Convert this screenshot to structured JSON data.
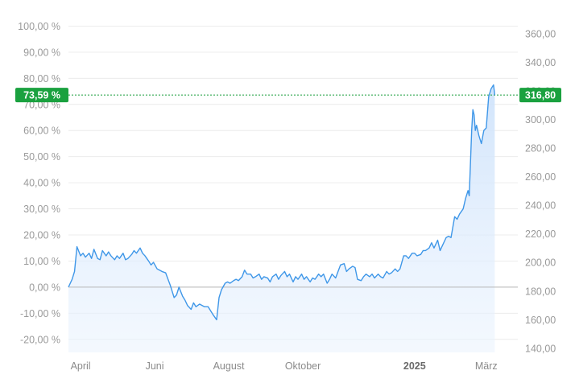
{
  "chart_data": {
    "type": "area",
    "title": "",
    "xlabel": "",
    "ylabel": "",
    "left_axis": {
      "unit": "percent change",
      "range": [
        -25,
        110
      ],
      "ticks": [
        -20,
        -10,
        0,
        10,
        20,
        30,
        40,
        50,
        60,
        70,
        80,
        90,
        100
      ],
      "tick_labels": [
        "-20,00 %",
        "-10,00 %",
        "0,00 %",
        "10,00 %",
        "20,00 %",
        "30,00 %",
        "40,00 %",
        "50,00 %",
        "60,00 %",
        "70,00 %",
        "80,00 %",
        "90,00 %",
        "100,00 %"
      ]
    },
    "right_axis": {
      "unit": "price",
      "range": [
        137.1,
        383.6
      ],
      "ticks": [
        140,
        160,
        180,
        200,
        220,
        240,
        260,
        280,
        300,
        320,
        340,
        360
      ],
      "tick_labels": [
        "140,00",
        "160,00",
        "180,00",
        "200,00",
        "220,00",
        "240,00",
        "260,00",
        "280,00",
        "300,00",
        "320,00",
        "340,00",
        "360,00"
      ]
    },
    "base_price": 182.5,
    "x_range": [
      "2024-03-22",
      "2025-03-27"
    ],
    "x_ticks": [
      {
        "date": "2024-04-01",
        "label": "April",
        "bold": false
      },
      {
        "date": "2024-06-01",
        "label": "Juni",
        "bold": false
      },
      {
        "date": "2024-08-01",
        "label": "August",
        "bold": false
      },
      {
        "date": "2024-10-01",
        "label": "Oktober",
        "bold": false
      },
      {
        "date": "2025-01-01",
        "label": "2025",
        "bold": true
      },
      {
        "date": "2025-03-01",
        "label": "März",
        "bold": false
      }
    ],
    "grid": true,
    "current": {
      "percent": 73.59,
      "percent_label": "73,59 %",
      "price": 316.8,
      "price_label": "316,80"
    },
    "series": [
      {
        "values": [
          [
            "2024-03-22",
            0
          ],
          [
            "2024-03-25",
            3
          ],
          [
            "2024-03-27",
            6
          ],
          [
            "2024-03-29",
            15.5
          ],
          [
            "2024-04-01",
            12
          ],
          [
            "2024-04-03",
            13
          ],
          [
            "2024-04-05",
            11.5
          ],
          [
            "2024-04-08",
            13
          ],
          [
            "2024-04-10",
            11
          ],
          [
            "2024-04-12",
            14.5
          ],
          [
            "2024-04-15",
            11
          ],
          [
            "2024-04-17",
            10.5
          ],
          [
            "2024-04-19",
            14
          ],
          [
            "2024-04-22",
            12
          ],
          [
            "2024-04-24",
            13.5
          ],
          [
            "2024-04-26",
            12
          ],
          [
            "2024-04-29",
            10.5
          ],
          [
            "2024-05-01",
            12
          ],
          [
            "2024-05-03",
            11
          ],
          [
            "2024-05-06",
            13
          ],
          [
            "2024-05-08",
            10.5
          ],
          [
            "2024-05-10",
            11
          ],
          [
            "2024-05-13",
            12.5
          ],
          [
            "2024-05-15",
            14
          ],
          [
            "2024-05-17",
            13
          ],
          [
            "2024-05-20",
            15
          ],
          [
            "2024-05-22",
            13
          ],
          [
            "2024-05-24",
            12
          ],
          [
            "2024-05-27",
            10
          ],
          [
            "2024-05-29",
            8.5
          ],
          [
            "2024-05-31",
            9.5
          ],
          [
            "2024-06-03",
            7
          ],
          [
            "2024-06-05",
            6.5
          ],
          [
            "2024-06-07",
            6
          ],
          [
            "2024-06-10",
            5.5
          ],
          [
            "2024-06-12",
            3
          ],
          [
            "2024-06-14",
            0.5
          ],
          [
            "2024-06-17",
            -4
          ],
          [
            "2024-06-19",
            -3
          ],
          [
            "2024-06-21",
            0
          ],
          [
            "2024-06-24",
            -3.5
          ],
          [
            "2024-06-26",
            -5
          ],
          [
            "2024-06-28",
            -7
          ],
          [
            "2024-07-01",
            -8.5
          ],
          [
            "2024-07-03",
            -6
          ],
          [
            "2024-07-05",
            -7.5
          ],
          [
            "2024-07-08",
            -6.5
          ],
          [
            "2024-07-10",
            -7
          ],
          [
            "2024-07-12",
            -7.5
          ],
          [
            "2024-07-15",
            -7.5
          ],
          [
            "2024-07-17",
            -9
          ],
          [
            "2024-07-19",
            -10.5
          ],
          [
            "2024-07-22",
            -12.5
          ],
          [
            "2024-07-24",
            -4
          ],
          [
            "2024-07-26",
            -1
          ],
          [
            "2024-07-29",
            1.5
          ],
          [
            "2024-07-31",
            2
          ],
          [
            "2024-08-02",
            1.5
          ],
          [
            "2024-08-05",
            2.5
          ],
          [
            "2024-08-07",
            3
          ],
          [
            "2024-08-09",
            2.5
          ],
          [
            "2024-08-12",
            4
          ],
          [
            "2024-08-14",
            6.5
          ],
          [
            "2024-08-16",
            5
          ],
          [
            "2024-08-19",
            5
          ],
          [
            "2024-08-21",
            3.5
          ],
          [
            "2024-08-23",
            4
          ],
          [
            "2024-08-26",
            5
          ],
          [
            "2024-08-28",
            3
          ],
          [
            "2024-08-30",
            4
          ],
          [
            "2024-09-02",
            3.5
          ],
          [
            "2024-09-04",
            2
          ],
          [
            "2024-09-06",
            4
          ],
          [
            "2024-09-09",
            5
          ],
          [
            "2024-09-11",
            3
          ],
          [
            "2024-09-13",
            4.5
          ],
          [
            "2024-09-16",
            6
          ],
          [
            "2024-09-18",
            4
          ],
          [
            "2024-09-20",
            5
          ],
          [
            "2024-09-23",
            2
          ],
          [
            "2024-09-25",
            4
          ],
          [
            "2024-09-27",
            3
          ],
          [
            "2024-09-30",
            5
          ],
          [
            "2024-10-02",
            3
          ],
          [
            "2024-10-04",
            4
          ],
          [
            "2024-10-07",
            2
          ],
          [
            "2024-10-09",
            3.5
          ],
          [
            "2024-10-11",
            3
          ],
          [
            "2024-10-14",
            5
          ],
          [
            "2024-10-16",
            4
          ],
          [
            "2024-10-18",
            5
          ],
          [
            "2024-10-21",
            1.5
          ],
          [
            "2024-10-23",
            3
          ],
          [
            "2024-10-25",
            5
          ],
          [
            "2024-10-28",
            3.5
          ],
          [
            "2024-10-30",
            6
          ],
          [
            "2024-11-01",
            8.5
          ],
          [
            "2024-11-04",
            9
          ],
          [
            "2024-11-06",
            6
          ],
          [
            "2024-11-08",
            7
          ],
          [
            "2024-11-11",
            8
          ],
          [
            "2024-11-13",
            7.5
          ],
          [
            "2024-11-15",
            3
          ],
          [
            "2024-11-18",
            2.5
          ],
          [
            "2024-11-20",
            4
          ],
          [
            "2024-11-22",
            5
          ],
          [
            "2024-11-25",
            4
          ],
          [
            "2024-11-27",
            5
          ],
          [
            "2024-11-29",
            3.5
          ],
          [
            "2024-12-02",
            5
          ],
          [
            "2024-12-04",
            4
          ],
          [
            "2024-12-06",
            3.5
          ],
          [
            "2024-12-09",
            6
          ],
          [
            "2024-12-11",
            5
          ],
          [
            "2024-12-13",
            5.5
          ],
          [
            "2024-12-16",
            7
          ],
          [
            "2024-12-18",
            6
          ],
          [
            "2024-12-20",
            7
          ],
          [
            "2024-12-23",
            12
          ],
          [
            "2024-12-25",
            12
          ],
          [
            "2024-12-27",
            11
          ],
          [
            "2024-12-30",
            13
          ],
          [
            "2025-01-01",
            13
          ],
          [
            "2025-01-03",
            12
          ],
          [
            "2025-01-06",
            12.5
          ],
          [
            "2025-01-08",
            14
          ],
          [
            "2025-01-10",
            14
          ],
          [
            "2025-01-13",
            15
          ],
          [
            "2025-01-15",
            17
          ],
          [
            "2025-01-17",
            15
          ],
          [
            "2025-01-20",
            18
          ],
          [
            "2025-01-22",
            14
          ],
          [
            "2025-01-24",
            16
          ],
          [
            "2025-01-27",
            19
          ],
          [
            "2025-01-29",
            19.5
          ],
          [
            "2025-01-31",
            19
          ],
          [
            "2025-02-03",
            27
          ],
          [
            "2025-02-05",
            26
          ],
          [
            "2025-02-07",
            28
          ],
          [
            "2025-02-10",
            30
          ],
          [
            "2025-02-12",
            34
          ],
          [
            "2025-02-14",
            37
          ],
          [
            "2025-02-15",
            35
          ],
          [
            "2025-02-17",
            60
          ],
          [
            "2025-02-18",
            68
          ],
          [
            "2025-02-19",
            66
          ],
          [
            "2025-02-20",
            60
          ],
          [
            "2025-02-21",
            62
          ],
          [
            "2025-02-23",
            58
          ],
          [
            "2025-02-25",
            55
          ],
          [
            "2025-02-27",
            60
          ],
          [
            "2025-03-01",
            61
          ],
          [
            "2025-03-03",
            73
          ],
          [
            "2025-03-05",
            76
          ],
          [
            "2025-03-07",
            77.5
          ],
          [
            "2025-03-08",
            73.59
          ]
        ]
      }
    ]
  }
}
